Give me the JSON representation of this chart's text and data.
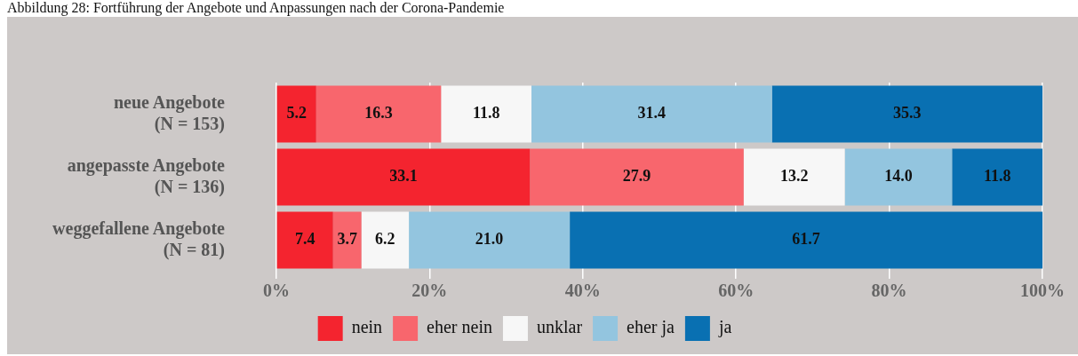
{
  "chart_data": {
    "type": "bar",
    "orientation": "horizontal",
    "stacked": true,
    "title": "Abbildung 28: Fortführung der Angebote und Anpassungen nach der Corona-Pandemie",
    "categories": [
      "neue Angebote\n(N = 153)",
      "angepasste Angebote\n(N = 136)",
      "weggefallene Angebote\n(N = 81)"
    ],
    "series": [
      {
        "name": "nein",
        "color": "#f4242f",
        "values": [
          5.2,
          33.1,
          7.4
        ],
        "value_labels": [
          "5.2",
          "33.1",
          "7.4"
        ]
      },
      {
        "name": "eher nein",
        "color": "#f8666d",
        "values": [
          16.3,
          27.9,
          3.7
        ],
        "value_labels": [
          "16.3",
          "27.9",
          "3.7"
        ]
      },
      {
        "name": "unklar",
        "color": "#f7f7f7",
        "values": [
          11.8,
          13.2,
          6.2
        ],
        "value_labels": [
          "11.8",
          "13.2",
          "6.2"
        ]
      },
      {
        "name": "eher ja",
        "color": "#93c5df",
        "values": [
          31.4,
          14.0,
          21.0
        ],
        "value_labels": [
          "31.4",
          "14.0",
          "21.0"
        ]
      },
      {
        "name": "ja",
        "color": "#0970b2",
        "values": [
          35.3,
          11.8,
          61.7
        ],
        "value_labels": [
          "35.3",
          "11.8",
          "61.7"
        ]
      }
    ],
    "xlim": [
      0,
      100
    ],
    "xticks": [
      {
        "value": 0,
        "label": "0%"
      },
      {
        "value": 20,
        "label": "20%"
      },
      {
        "value": 40,
        "label": "40%"
      },
      {
        "value": 60,
        "label": "60%"
      },
      {
        "value": 80,
        "label": "80%"
      },
      {
        "value": 100,
        "label": "100%"
      }
    ],
    "grid": "x",
    "legend": "bottom"
  }
}
